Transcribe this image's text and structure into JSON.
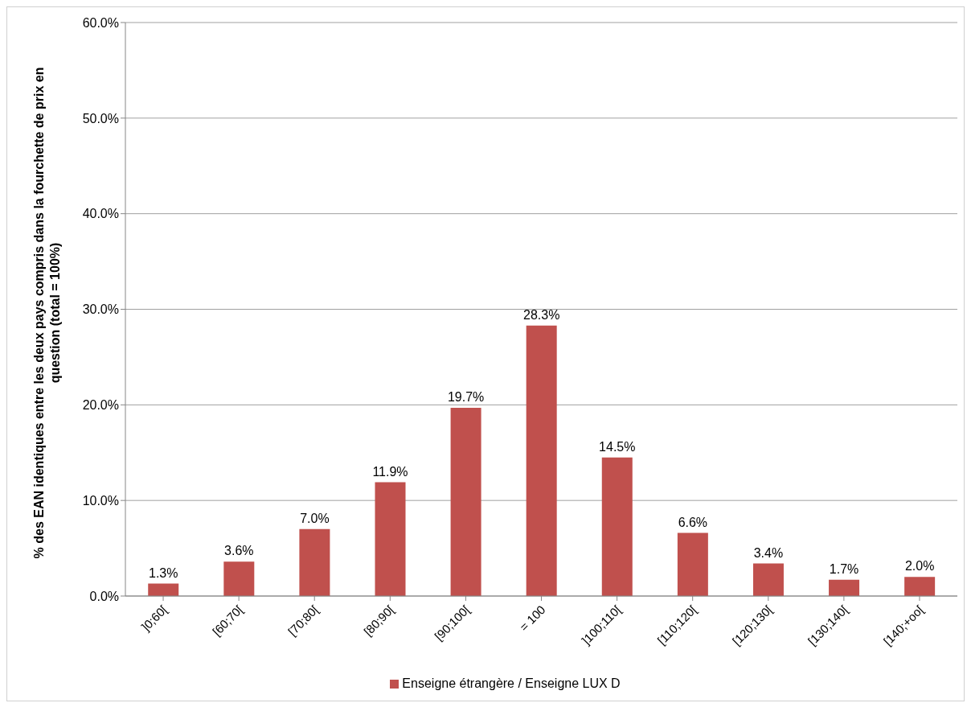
{
  "chart_data": {
    "type": "bar",
    "ylabel": "% des EAN identiques entre les deux pays compris dans la fourchette de prix en question (total = 100%)",
    "categories": [
      "]0;60[",
      "[60;70[",
      "[70;80[",
      "[80;90[",
      "[90;100[",
      "= 100",
      "]100;110[",
      "[110;120[",
      "[120;130[",
      "[130;140[",
      "[140;+oo["
    ],
    "series": [
      {
        "name": "Enseigne étrangère / Enseigne LUX D",
        "color": "#c0504d",
        "values": [
          1.3,
          3.6,
          7.0,
          11.9,
          19.7,
          28.3,
          14.5,
          6.6,
          3.4,
          1.7,
          2.0
        ],
        "value_labels": [
          "1.3%",
          "3.6%",
          "7.0%",
          "11.9%",
          "19.7%",
          "28.3%",
          "14.5%",
          "6.6%",
          "3.4%",
          "1.7%",
          "2.0%"
        ]
      }
    ],
    "ylim": [
      0,
      60
    ],
    "yticks": [
      {
        "value": 0,
        "label": "0.0%"
      },
      {
        "value": 10,
        "label": "10.0%"
      },
      {
        "value": 20,
        "label": "20.0%"
      },
      {
        "value": 30,
        "label": "30.0%"
      },
      {
        "value": 40,
        "label": "40.0%"
      },
      {
        "value": 50,
        "label": "50.0%"
      },
      {
        "value": 60,
        "label": "60.0%"
      }
    ],
    "grid": "y",
    "legend": "bottom"
  }
}
